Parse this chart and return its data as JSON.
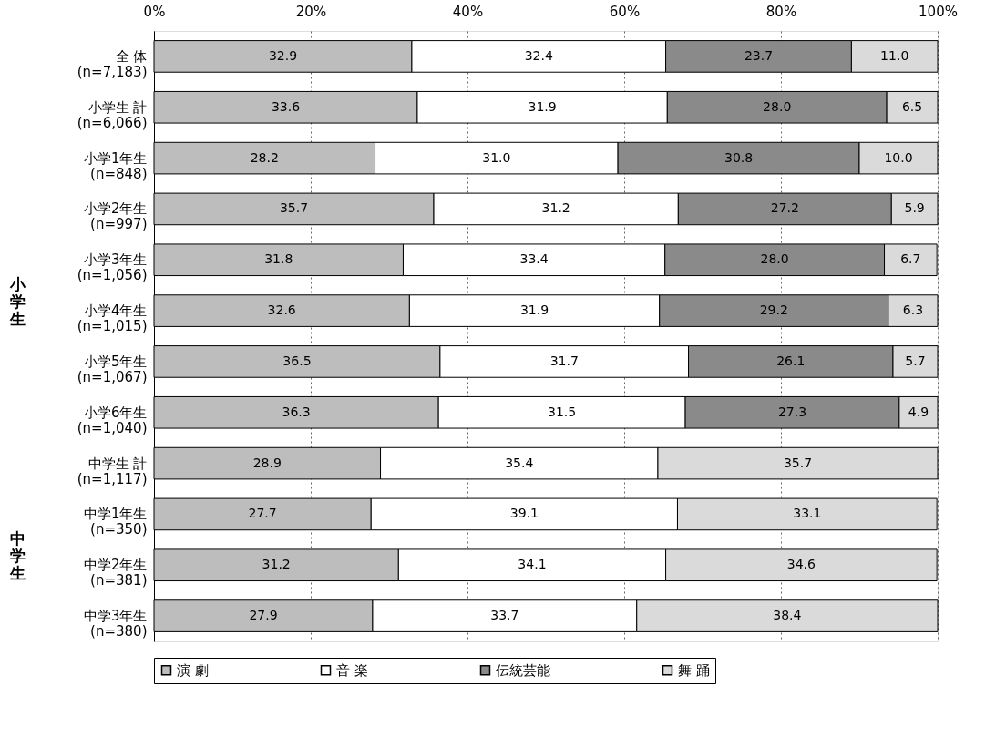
{
  "chart_data": {
    "type": "bar",
    "orientation": "horizontal",
    "stacked": true,
    "categories": [
      "全 体\n(n=7,183)",
      "小学生 計\n(n=6,066)",
      "小学1年生\n(n=848)",
      "小学2年生\n(n=997)",
      "小学3年生\n(n=1,056)",
      "小学4年生\n(n=1,015)",
      "小学5年生\n(n=1,067)",
      "小学6年生\n(n=1,040)",
      "中学生 計\n(n=1,117)",
      "中学1年生\n(n=350)",
      "中学2年生\n(n=381)",
      "中学3年生\n(n=380)"
    ],
    "series": [
      {
        "name": "演 劇",
        "color": "#bdbdbd",
        "values": [
          32.9,
          33.6,
          28.2,
          35.7,
          31.8,
          32.6,
          36.5,
          36.3,
          28.9,
          27.7,
          31.2,
          27.9
        ],
        "value_labels": [
          "32.9",
          "33.6",
          "28.2",
          "35.7",
          "31.8",
          "32.6",
          "36.5",
          "36.3",
          "28.9",
          "27.7",
          "31.2",
          "27.9"
        ]
      },
      {
        "name": "音 楽",
        "color": "#ffffff",
        "values": [
          32.4,
          31.9,
          31.0,
          31.2,
          33.4,
          31.9,
          31.7,
          31.5,
          35.4,
          39.1,
          34.1,
          33.7
        ],
        "value_labels": [
          "32.4",
          "31.9",
          "31.0",
          "31.2",
          "33.4",
          "31.9",
          "31.7",
          "31.5",
          "35.4",
          "39.1",
          "34.1",
          "33.7"
        ]
      },
      {
        "name": "伝統芸能",
        "color": "#8a8a8a",
        "values": [
          23.7,
          28.0,
          30.8,
          27.2,
          28.0,
          29.2,
          26.1,
          27.3,
          null,
          null,
          null,
          null
        ],
        "value_labels": [
          "23.7",
          "28.0",
          "30.8",
          "27.2",
          "28.0",
          "29.2",
          "26.1",
          "27.3",
          null,
          null,
          null,
          null
        ]
      },
      {
        "name": "舞 踊",
        "color": "#dadada",
        "values": [
          11.0,
          6.5,
          10.0,
          5.9,
          6.7,
          6.3,
          5.7,
          4.9,
          35.7,
          33.1,
          34.6,
          38.4
        ],
        "value_labels": [
          "11.0",
          "6.5",
          "10.0",
          "5.9",
          "6.7",
          "6.3",
          "5.7",
          "4.9",
          "35.7",
          "33.1",
          "34.6",
          "38.4"
        ]
      }
    ],
    "xlim": [
      0,
      100
    ],
    "xticks": [
      {
        "value": 0,
        "label": "0%"
      },
      {
        "value": 20,
        "label": "20%"
      },
      {
        "value": 40,
        "label": "40%"
      },
      {
        "value": 60,
        "label": "60%"
      },
      {
        "value": 80,
        "label": "80%"
      },
      {
        "value": 100,
        "label": "100%"
      }
    ],
    "grid": "x",
    "legend": "bottom",
    "annotations": [
      "小学生",
      "中学生"
    ]
  }
}
